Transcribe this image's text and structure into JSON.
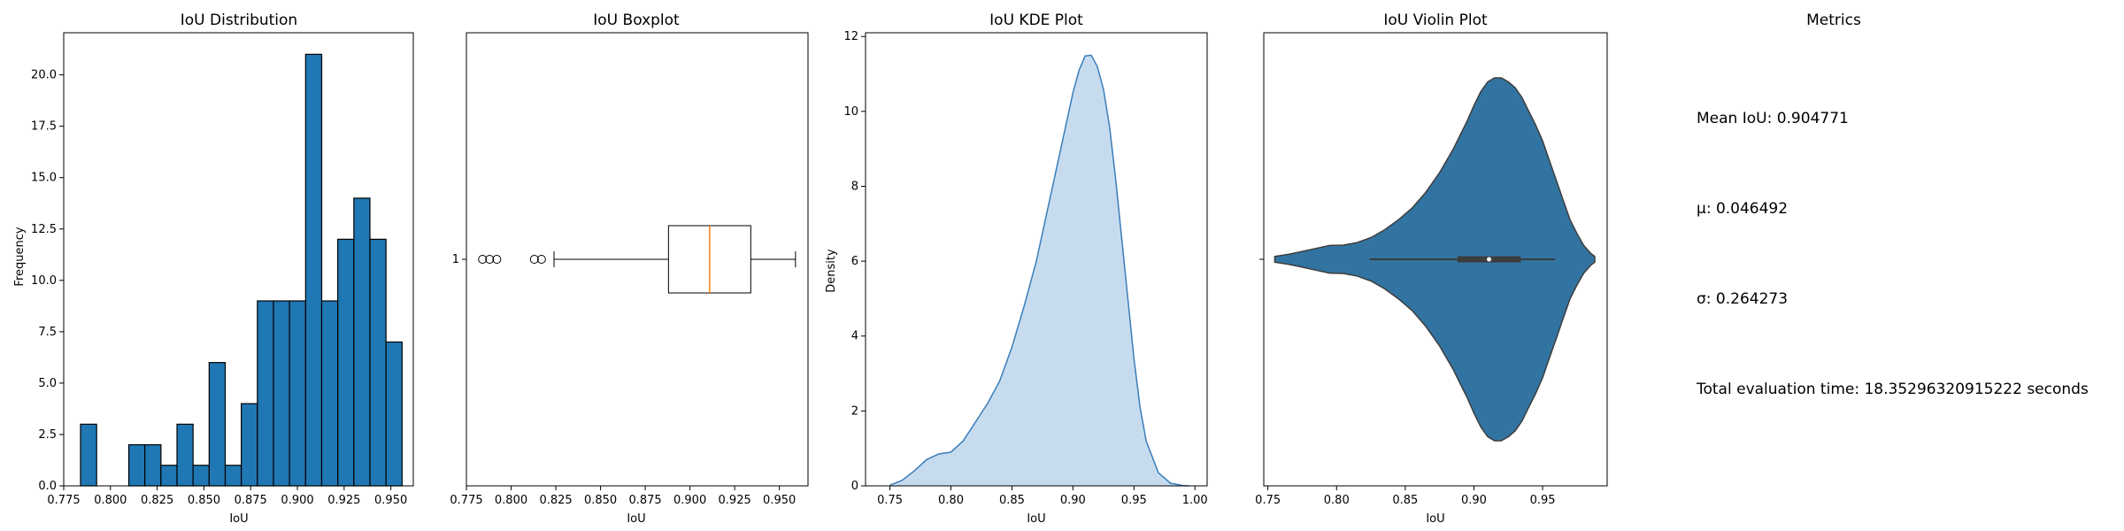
{
  "chart_data": [
    {
      "type": "bar",
      "title": "IoU Distribution",
      "xlabel": "IoU",
      "ylabel": "Frequency",
      "xlim": [
        0.775,
        0.962
      ],
      "ylim": [
        0,
        22.05
      ],
      "xticks": [
        "0.775",
        "0.800",
        "0.825",
        "0.850",
        "0.875",
        "0.900",
        "0.925",
        "0.950"
      ],
      "yticks": [
        "0.0",
        "2.5",
        "5.0",
        "7.5",
        "10.0",
        "12.5",
        "15.0",
        "17.5",
        "20.0"
      ],
      "bin_start": 0.784,
      "bin_width": 0.0086,
      "values": [
        3,
        0,
        0,
        2,
        2,
        1,
        3,
        1,
        6,
        1,
        4,
        9,
        9,
        9,
        21,
        9,
        12,
        14,
        12,
        7
      ],
      "color": "#1f77b4"
    },
    {
      "type": "boxplot",
      "title": "IoU Boxplot",
      "xlabel": "IoU",
      "category": "1",
      "xlim": [
        0.775,
        0.966
      ],
      "xticks": [
        "0.775",
        "0.800",
        "0.825",
        "0.850",
        "0.875",
        "0.900",
        "0.925",
        "0.950"
      ],
      "whisker_low": 0.824,
      "q1": 0.888,
      "median": 0.911,
      "q3": 0.934,
      "whisker_high": 0.959,
      "outliers": [
        0.784,
        0.788,
        0.792,
        0.813,
        0.817
      ],
      "median_color": "#ff7f0e"
    },
    {
      "type": "area",
      "title": "IoU KDE Plot",
      "xlabel": "IoU",
      "ylabel": "Density",
      "xlim": [
        0.73,
        1.01
      ],
      "ylim": [
        0,
        12.1
      ],
      "xticks": [
        "0.75",
        "0.80",
        "0.85",
        "0.90",
        "0.95",
        "1.00"
      ],
      "yticks": [
        "0",
        "2",
        "4",
        "6",
        "8",
        "10",
        "12"
      ],
      "x": [
        0.75,
        0.76,
        0.77,
        0.78,
        0.79,
        0.8,
        0.81,
        0.82,
        0.83,
        0.84,
        0.85,
        0.86,
        0.87,
        0.88,
        0.89,
        0.9,
        0.905,
        0.91,
        0.915,
        0.92,
        0.925,
        0.93,
        0.935,
        0.94,
        0.945,
        0.95,
        0.955,
        0.96,
        0.97,
        0.98,
        0.99,
        0.995
      ],
      "y": [
        0.02,
        0.15,
        0.4,
        0.7,
        0.85,
        0.9,
        1.2,
        1.7,
        2.2,
        2.8,
        3.7,
        4.8,
        6.0,
        7.5,
        9.0,
        10.5,
        11.1,
        11.48,
        11.5,
        11.2,
        10.6,
        9.6,
        8.2,
        6.6,
        5.0,
        3.4,
        2.1,
        1.2,
        0.35,
        0.07,
        0.01,
        0.0
      ],
      "fill_color": "#c6dcee",
      "line_color": "#3a7dba"
    },
    {
      "type": "violin",
      "title": "IoU Violin Plot",
      "xlabel": "IoU",
      "xlim": [
        0.747,
        0.997
      ],
      "xticks": [
        "0.75",
        "0.80",
        "0.85",
        "0.90",
        "0.95"
      ],
      "x": [
        0.755,
        0.765,
        0.775,
        0.785,
        0.795,
        0.805,
        0.815,
        0.825,
        0.835,
        0.845,
        0.855,
        0.865,
        0.875,
        0.885,
        0.895,
        0.9,
        0.905,
        0.91,
        0.915,
        0.92,
        0.925,
        0.93,
        0.935,
        0.94,
        0.945,
        0.95,
        0.955,
        0.96,
        0.965,
        0.97,
        0.975,
        0.98,
        0.985,
        0.988
      ],
      "density": [
        0.15,
        0.25,
        0.4,
        0.55,
        0.7,
        0.72,
        0.85,
        1.1,
        1.5,
        2.0,
        2.6,
        3.4,
        4.4,
        5.6,
        7.0,
        7.8,
        8.5,
        9.0,
        9.2,
        9.2,
        9.0,
        8.7,
        8.2,
        7.5,
        6.8,
        6.0,
        5.0,
        4.0,
        3.0,
        2.0,
        1.3,
        0.7,
        0.3,
        0.15
      ],
      "whisker_low": 0.824,
      "q1": 0.888,
      "median": 0.911,
      "q3": 0.934,
      "whisker_high": 0.959,
      "body_color": "#3274a1",
      "edge_color": "#3d3d3d"
    }
  ],
  "metrics": {
    "title": "Metrics",
    "lines": [
      "Mean IoU: 0.904771",
      "μ: 0.046492",
      "σ: 0.264273",
      "Total evaluation time: 18.35296320915222 seconds"
    ]
  }
}
